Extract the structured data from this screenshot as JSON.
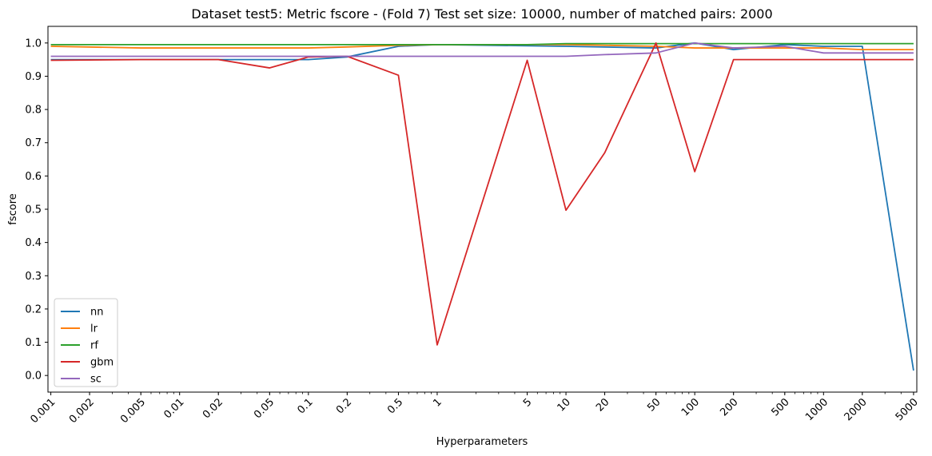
{
  "chart_data": {
    "type": "line",
    "title": "Dataset test5: Metric fscore - (Fold 7) Test set size: 10000, number of matched pairs: 2000",
    "xlabel": "Hyperparameters",
    "ylabel": "fscore",
    "x_scale": "log",
    "xlim": [
      0.00095,
      5300
    ],
    "ylim": [
      -0.05,
      1.05
    ],
    "x": [
      0.001,
      0.002,
      0.005,
      0.01,
      0.02,
      0.05,
      0.1,
      0.2,
      0.5,
      1,
      5,
      10,
      20,
      50,
      100,
      200,
      500,
      1000,
      2000,
      5000
    ],
    "x_tick_labels": [
      "0.001",
      "0.002",
      "0.005",
      "0.01",
      "0.02",
      "0.05",
      "0.1",
      "0.2",
      "0.5",
      "1",
      "5",
      "10",
      "20",
      "50",
      "100",
      "200",
      "500",
      "1000",
      "2000",
      "5000"
    ],
    "y_ticks": [
      0.0,
      0.1,
      0.2,
      0.3,
      0.4,
      0.5,
      0.6,
      0.7,
      0.8,
      0.9,
      1.0
    ],
    "y_tick_labels": [
      "0.0",
      "0.1",
      "0.2",
      "0.3",
      "0.4",
      "0.5",
      "0.6",
      "0.7",
      "0.8",
      "0.9",
      "1.0"
    ],
    "legend_position": "lower-left",
    "grid": false,
    "series": [
      {
        "name": "nn",
        "color": "#1f77b4",
        "points": [
          [
            0.001,
            0.95
          ],
          [
            0.1,
            0.95
          ],
          [
            0.2,
            0.958
          ],
          [
            0.5,
            0.99
          ],
          [
            1,
            0.995
          ],
          [
            10,
            0.99
          ],
          [
            50,
            0.985
          ],
          [
            100,
            1.0
          ],
          [
            200,
            0.98
          ],
          [
            500,
            0.995
          ],
          [
            1000,
            0.99
          ],
          [
            2000,
            0.99
          ],
          [
            5000,
            0.015
          ]
        ]
      },
      {
        "name": "lr",
        "color": "#ff7f0e",
        "points": [
          [
            0.001,
            0.99
          ],
          [
            0.005,
            0.985
          ],
          [
            0.1,
            0.985
          ],
          [
            0.2,
            0.988
          ],
          [
            0.5,
            0.993
          ],
          [
            1,
            0.995
          ],
          [
            5,
            0.995
          ],
          [
            10,
            0.995
          ],
          [
            20,
            0.993
          ],
          [
            50,
            0.99
          ],
          [
            100,
            0.985
          ],
          [
            200,
            0.985
          ],
          [
            1000,
            0.985
          ],
          [
            2000,
            0.98
          ],
          [
            5000,
            0.98
          ]
        ]
      },
      {
        "name": "rf",
        "color": "#2ca02c",
        "points": [
          [
            0.001,
            0.995
          ],
          [
            0.2,
            0.995
          ],
          [
            0.5,
            0.995
          ],
          [
            1,
            0.995
          ],
          [
            5,
            0.995
          ],
          [
            10,
            0.998
          ],
          [
            20,
            0.998
          ],
          [
            50,
            0.998
          ],
          [
            100,
            0.998
          ],
          [
            200,
            0.998
          ],
          [
            500,
            0.998
          ],
          [
            1000,
            0.998
          ],
          [
            2000,
            0.998
          ],
          [
            5000,
            0.998
          ]
        ]
      },
      {
        "name": "gbm",
        "color": "#d62728",
        "points": [
          [
            0.001,
            0.948
          ],
          [
            0.005,
            0.95
          ],
          [
            0.02,
            0.95
          ],
          [
            0.05,
            0.925
          ],
          [
            0.1,
            0.958
          ],
          [
            0.2,
            0.96
          ],
          [
            0.5,
            0.903
          ],
          [
            1,
            0.092
          ],
          [
            5,
            0.948
          ],
          [
            10,
            0.497
          ],
          [
            20,
            0.67
          ],
          [
            50,
            1.0
          ],
          [
            100,
            0.613
          ],
          [
            200,
            0.95
          ],
          [
            500,
            0.95
          ],
          [
            1000,
            0.95
          ],
          [
            2000,
            0.95
          ],
          [
            5000,
            0.95
          ]
        ]
      },
      {
        "name": "sc",
        "color": "#9467bd",
        "points": [
          [
            0.001,
            0.96
          ],
          [
            0.1,
            0.96
          ],
          [
            0.2,
            0.96
          ],
          [
            0.5,
            0.96
          ],
          [
            1,
            0.96
          ],
          [
            5,
            0.96
          ],
          [
            10,
            0.96
          ],
          [
            20,
            0.965
          ],
          [
            50,
            0.97
          ],
          [
            100,
            1.0
          ],
          [
            200,
            0.985
          ],
          [
            500,
            0.99
          ],
          [
            1000,
            0.97
          ],
          [
            2000,
            0.97
          ],
          [
            5000,
            0.97
          ]
        ]
      }
    ]
  }
}
